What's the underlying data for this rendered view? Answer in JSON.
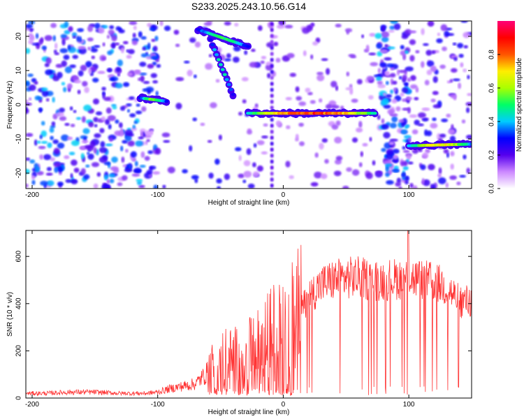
{
  "chart_data": [
    {
      "type": "heatmap",
      "title": "S233.2025.243.10.56.G14",
      "xlabel": "Height of straight line (km)",
      "ylabel": "Frequency (Hz)",
      "xlim": [
        -205,
        150
      ],
      "ylim": [
        -24.5,
        24.5
      ],
      "xticks": [
        -200,
        -100,
        0,
        100
      ],
      "yticks": [
        -20,
        -10,
        0,
        10,
        20
      ],
      "colorbar": {
        "label": "Normalized spectral amplitude",
        "ticks": [
          0.0,
          0.2,
          0.4,
          0.6,
          0.8
        ],
        "range": [
          0,
          1
        ],
        "colors": [
          "#ffffff",
          "#cc88ff",
          "#5500ee",
          "#0000ff",
          "#00ccff",
          "#00ff66",
          "#aaff00",
          "#ffee00",
          "#ff5500",
          "#ff0000",
          "#ff0077"
        ]
      },
      "features": [
        {
          "name": "tone-segment-1",
          "x": [
            -114,
            -93
          ],
          "y": [
            2,
            1
          ],
          "peak": 0.6
        },
        {
          "name": "tone-segment-2",
          "x": [
            -28,
            73
          ],
          "y": [
            -2.5,
            -2.5
          ],
          "peak": 0.9
        },
        {
          "name": "tone-segment-3",
          "x": [
            100,
            150
          ],
          "y": [
            -12,
            -11.5
          ],
          "peak": 0.75
        },
        {
          "name": "descending-trace",
          "x": [
            -58,
            -40
          ],
          "y": [
            19,
            3
          ],
          "peak": 0.5
        },
        {
          "name": "upper-trace",
          "x": [
            -68,
            -28
          ],
          "y": [
            22,
            17
          ],
          "peak": 0.55
        }
      ]
    },
    {
      "type": "line",
      "xlabel": "Height of straight line (km)",
      "ylabel": "SNR (10 * v/v)",
      "xlim": [
        -205,
        150
      ],
      "ylim": [
        0,
        710
      ],
      "xticks": [
        -200,
        -100,
        0,
        100
      ],
      "yticks": [
        0,
        200,
        400,
        600
      ],
      "series": [
        {
          "name": "SNR",
          "color": "#ff3333",
          "x": [
            -205,
            -190,
            -170,
            -150,
            -130,
            -110,
            -100,
            -90,
            -80,
            -70,
            -60,
            -50,
            -40,
            -30,
            -20,
            -10,
            0,
            10,
            20,
            30,
            40,
            50,
            60,
            70,
            80,
            90,
            100,
            110,
            120,
            130,
            140,
            150
          ],
          "y": [
            20,
            20,
            25,
            25,
            20,
            20,
            25,
            40,
            50,
            60,
            110,
            160,
            160,
            170,
            200,
            250,
            310,
            320,
            430,
            480,
            500,
            510,
            510,
            500,
            500,
            505,
            510,
            500,
            490,
            470,
            410,
            410
          ]
        }
      ]
    }
  ]
}
